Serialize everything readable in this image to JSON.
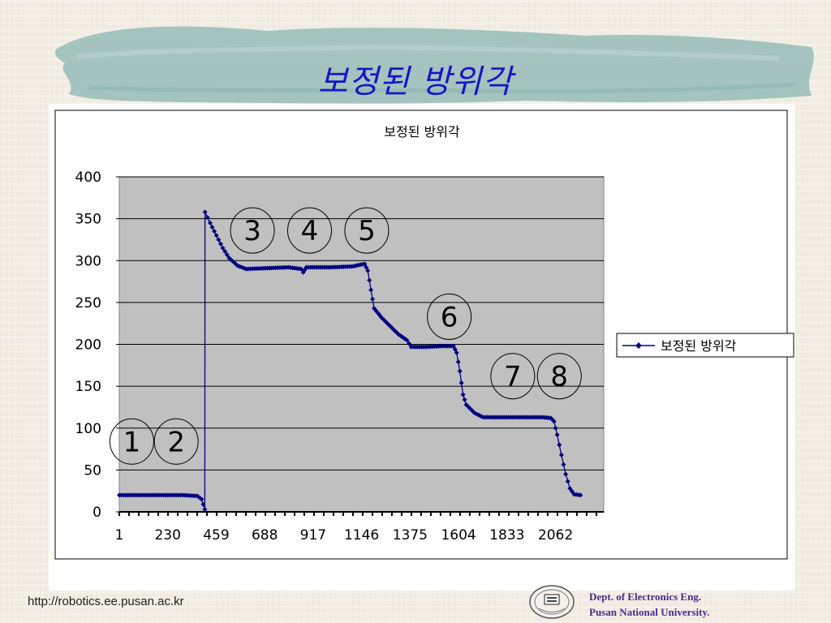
{
  "slide": {
    "title": "보정된 방위각",
    "footer_url": "http://robotics.ee.pusan.ac.kr",
    "dept_line1": "Dept. of Electronics Eng.",
    "dept_line2": "Pusan National  University",
    "dept_period": "."
  },
  "chart_data": {
    "type": "line",
    "title": "보정된 방위각",
    "xlabel": "",
    "ylabel": "",
    "x_tick_labels": [
      "1",
      "230",
      "459",
      "688",
      "917",
      "1146",
      "1375",
      "1604",
      "1833",
      "2062"
    ],
    "x_ticks": [
      1,
      230,
      459,
      688,
      917,
      1146,
      1375,
      1604,
      1833,
      2062
    ],
    "xlim": [
      1,
      2290
    ],
    "ylim": [
      0,
      400
    ],
    "y_ticks": [
      0,
      50,
      100,
      150,
      200,
      250,
      300,
      350,
      400
    ],
    "grid": true,
    "plot_background": "#c0c0c0",
    "series_color": "#000080",
    "legend_position": "right",
    "series": [
      {
        "name": "보정된 방위각",
        "points": [
          [
            1,
            20
          ],
          [
            100,
            20
          ],
          [
            200,
            20
          ],
          [
            300,
            20
          ],
          [
            370,
            19
          ],
          [
            390,
            15
          ],
          [
            405,
            3
          ],
          [
            406,
            358
          ],
          [
            430,
            345
          ],
          [
            460,
            330
          ],
          [
            490,
            315
          ],
          [
            520,
            303
          ],
          [
            560,
            294
          ],
          [
            600,
            290
          ],
          [
            700,
            291
          ],
          [
            800,
            292
          ],
          [
            860,
            290
          ],
          [
            870,
            286
          ],
          [
            885,
            292
          ],
          [
            1000,
            292
          ],
          [
            1100,
            293
          ],
          [
            1160,
            296
          ],
          [
            1175,
            288
          ],
          [
            1190,
            265
          ],
          [
            1205,
            243
          ],
          [
            1240,
            232
          ],
          [
            1280,
            222
          ],
          [
            1320,
            212
          ],
          [
            1360,
            205
          ],
          [
            1380,
            197
          ],
          [
            1450,
            197
          ],
          [
            1530,
            198
          ],
          [
            1580,
            198
          ],
          [
            1595,
            190
          ],
          [
            1610,
            168
          ],
          [
            1625,
            140
          ],
          [
            1640,
            128
          ],
          [
            1680,
            118
          ],
          [
            1720,
            113
          ],
          [
            1800,
            113
          ],
          [
            1900,
            113
          ],
          [
            2000,
            113
          ],
          [
            2040,
            112
          ],
          [
            2055,
            108
          ],
          [
            2070,
            92
          ],
          [
            2090,
            68
          ],
          [
            2110,
            45
          ],
          [
            2130,
            28
          ],
          [
            2150,
            21
          ],
          [
            2180,
            20
          ]
        ]
      }
    ],
    "annotations": [
      {
        "label": "1",
        "x": 60,
        "y": 84
      },
      {
        "label": "2",
        "x": 270,
        "y": 84
      },
      {
        "label": "3",
        "x": 630,
        "y": 336
      },
      {
        "label": "4",
        "x": 900,
        "y": 336
      },
      {
        "label": "5",
        "x": 1170,
        "y": 336
      },
      {
        "label": "6",
        "x": 1560,
        "y": 233
      },
      {
        "label": "7",
        "x": 1860,
        "y": 162
      },
      {
        "label": "8",
        "x": 2080,
        "y": 162
      }
    ]
  }
}
